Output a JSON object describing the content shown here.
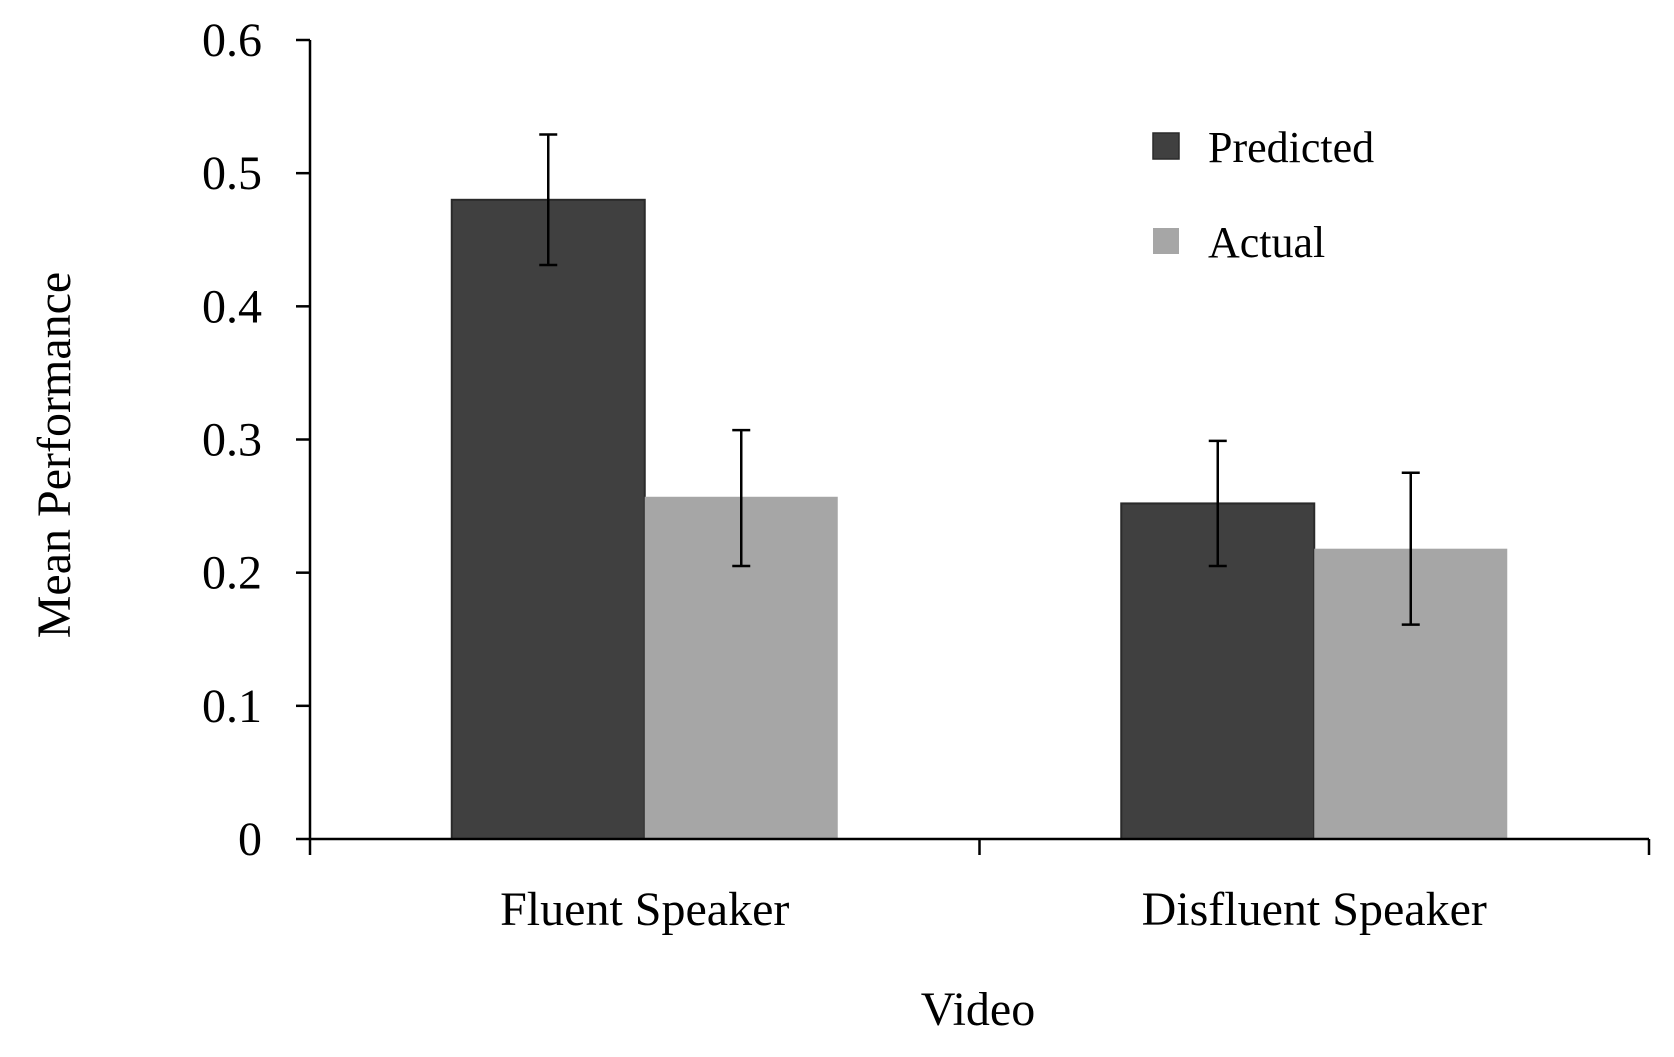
{
  "chart_data": {
    "type": "bar",
    "title": "",
    "xlabel": "Video",
    "ylabel": "Mean Performance",
    "categories": [
      "Fluent Speaker",
      "Disfluent Speaker"
    ],
    "series": [
      {
        "name": "Predicted",
        "color": "#404040",
        "values": [
          0.48,
          0.252
        ],
        "error_low": [
          0.431,
          0.205
        ],
        "error_high": [
          0.529,
          0.299
        ]
      },
      {
        "name": "Actual",
        "color": "#a6a6a6",
        "values": [
          0.257,
          0.218
        ],
        "error_low": [
          0.205,
          0.161
        ],
        "error_high": [
          0.307,
          0.275
        ]
      }
    ],
    "ylim": [
      0,
      0.6
    ],
    "yticks": [
      "0",
      "0.1",
      "0.2",
      "0.3",
      "0.4",
      "0.5",
      "0.6"
    ],
    "grid": false,
    "legend_position": "top-right"
  }
}
